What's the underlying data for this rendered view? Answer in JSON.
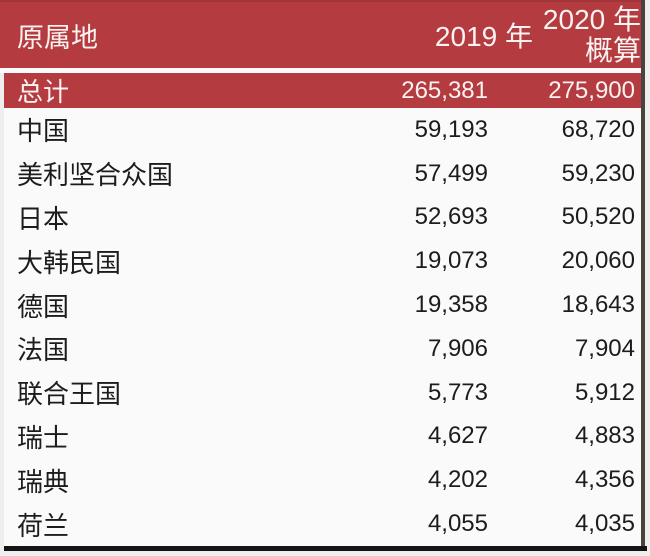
{
  "table": {
    "header": {
      "origin": "原属地",
      "col2019": "2019 年",
      "col2020_line1": "2020 年",
      "col2020_line2": "概算"
    },
    "total": {
      "label": "总计",
      "y2019": "265,381",
      "y2020": "275,900"
    },
    "rows": [
      {
        "label": "中国",
        "y2019": "59,193",
        "y2020": "68,720"
      },
      {
        "label": "美利坚合众国",
        "y2019": "57,499",
        "y2020": "59,230"
      },
      {
        "label": "日本",
        "y2019": "52,693",
        "y2020": "50,520"
      },
      {
        "label": "大韩民国",
        "y2019": "19,073",
        "y2020": "20,060"
      },
      {
        "label": "德国",
        "y2019": "19,358",
        "y2020": "18,643"
      },
      {
        "label": "法国",
        "y2019": "7,906",
        "y2020": "7,904"
      },
      {
        "label": "联合王国",
        "y2019": "5,773",
        "y2020": "5,912"
      },
      {
        "label": "瑞士",
        "y2019": "4,627",
        "y2020": "4,883"
      },
      {
        "label": "瑞典",
        "y2019": "4,202",
        "y2020": "4,356"
      },
      {
        "label": "荷兰",
        "y2019": "4,055",
        "y2020": "4,035"
      }
    ]
  },
  "chart_data": {
    "type": "table",
    "columns": [
      "原属地",
      "2019 年",
      "2020 年概算"
    ],
    "categories": [
      "总计",
      "中国",
      "美利坚合众国",
      "日本",
      "大韩民国",
      "德国",
      "法国",
      "联合王国",
      "瑞士",
      "瑞典",
      "荷兰"
    ],
    "series": [
      {
        "name": "2019 年",
        "values": [
          265381,
          59193,
          57499,
          52693,
          19073,
          19358,
          7906,
          5773,
          4627,
          4202,
          4055
        ]
      },
      {
        "name": "2020 年概算",
        "values": [
          275900,
          68720,
          59230,
          50520,
          20060,
          18643,
          7904,
          5912,
          4883,
          4356,
          4035
        ]
      }
    ]
  },
  "colors": {
    "accent_red": "#b43b40",
    "accent_red_dark": "#a2353a",
    "header_text": "#fbf3f2",
    "body_text": "#1d1b1b",
    "page_bg": "#efeeec",
    "table_bg": "#fbfafa",
    "bottom_border": "#141414",
    "right_border": "#4a423f"
  }
}
